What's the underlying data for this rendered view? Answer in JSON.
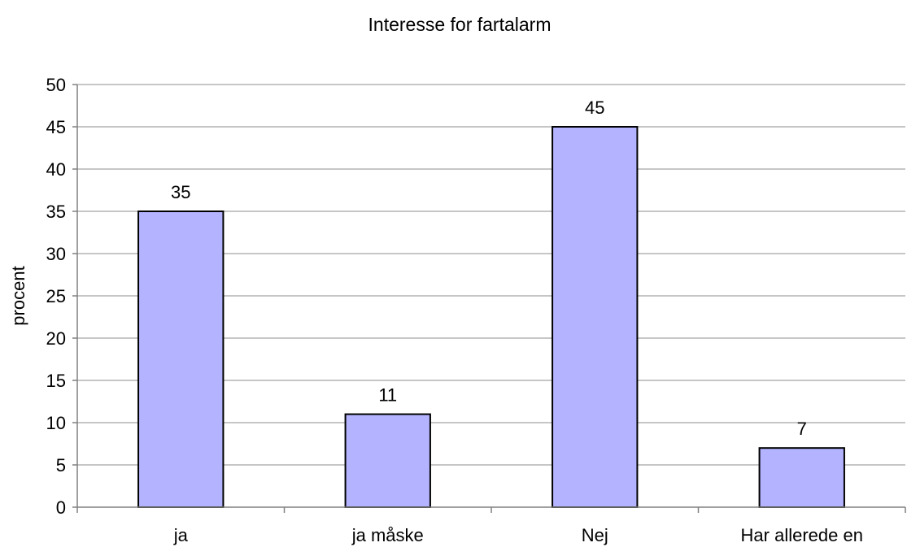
{
  "chart_data": {
    "type": "bar",
    "title": "Interesse for fartalarm",
    "xlabel": "",
    "ylabel": "procent",
    "categories": [
      "ja",
      "ja måske",
      "Nej",
      "Har allerede en"
    ],
    "values": [
      35,
      11,
      45,
      7
    ],
    "data_labels": [
      "35",
      "11",
      "45",
      "7"
    ],
    "ylim": [
      0,
      50
    ],
    "yticks": [
      0,
      5,
      10,
      15,
      20,
      25,
      30,
      35,
      40,
      45,
      50
    ],
    "grid": true,
    "legend": "none",
    "colors": {
      "bar_fill": "#b3b3ff",
      "bar_stroke": "#000000",
      "grid": "#8c8c8c"
    }
  }
}
